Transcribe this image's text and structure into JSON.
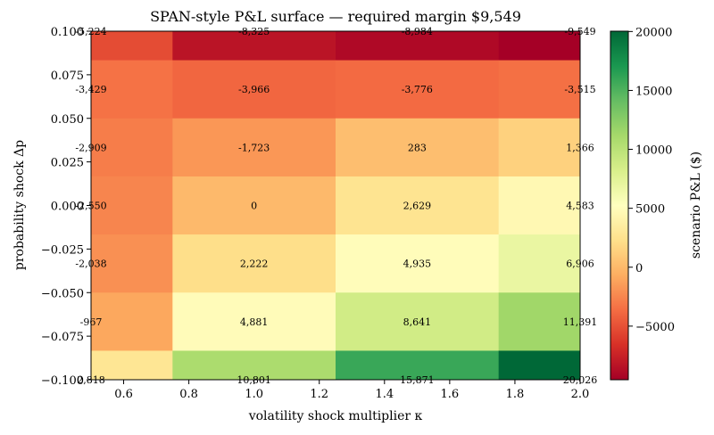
{
  "chart_data": {
    "type": "heatmap",
    "title": "SPAN-style P&L surface — required margin $9,549",
    "xlabel": "volatility shock multiplier κ",
    "ylabel": "probability shock Δp",
    "colorbar_label": "scenario P&L ($)",
    "colormap": "RdYlGn",
    "color_range": [
      -9549,
      20026
    ],
    "x_ticks": [
      "0.6",
      "0.8",
      "1.0",
      "1.2",
      "1.4",
      "1.6",
      "1.8",
      "2.0"
    ],
    "y_ticks": [
      "0.100",
      "0.075",
      "0.050",
      "0.025",
      "0.000",
      "−0.025",
      "−0.050",
      "−0.075",
      "−0.100"
    ],
    "colorbar_ticks": [
      "20000",
      "15000",
      "10000",
      "5000",
      "0",
      "−5000"
    ],
    "x_values": [
      0.5,
      1.0,
      1.5,
      2.0
    ],
    "y_values": [
      0.1,
      0.0667,
      0.0333,
      0.0,
      -0.0333,
      -0.0667,
      -0.1
    ],
    "values": [
      [
        -5224,
        -8325,
        -8984,
        -9549
      ],
      [
        -3429,
        -3966,
        -3776,
        -3515
      ],
      [
        -2909,
        -1723,
        283,
        1366
      ],
      [
        -2550,
        0,
        2629,
        4583
      ],
      [
        -2038,
        2222,
        4935,
        6906
      ],
      [
        -967,
        4881,
        8641,
        11391
      ],
      [
        2818,
        10801,
        15871,
        20026
      ]
    ],
    "labels": [
      [
        "-5,224",
        "-8,325",
        "-8,984",
        "-9,549"
      ],
      [
        "-3,429",
        "-3,966",
        "-3,776",
        "-3,515"
      ],
      [
        "-2,909",
        "-1,723",
        "283",
        "1,366"
      ],
      [
        "-2,550",
        "0",
        "2,629",
        "4,583"
      ],
      [
        "-2,038",
        "2,222",
        "4,935",
        "6,906"
      ],
      [
        "-967",
        "4,881",
        "8,641",
        "11,391"
      ],
      [
        "2,818",
        "10,801",
        "15,871",
        "20,026"
      ]
    ]
  }
}
